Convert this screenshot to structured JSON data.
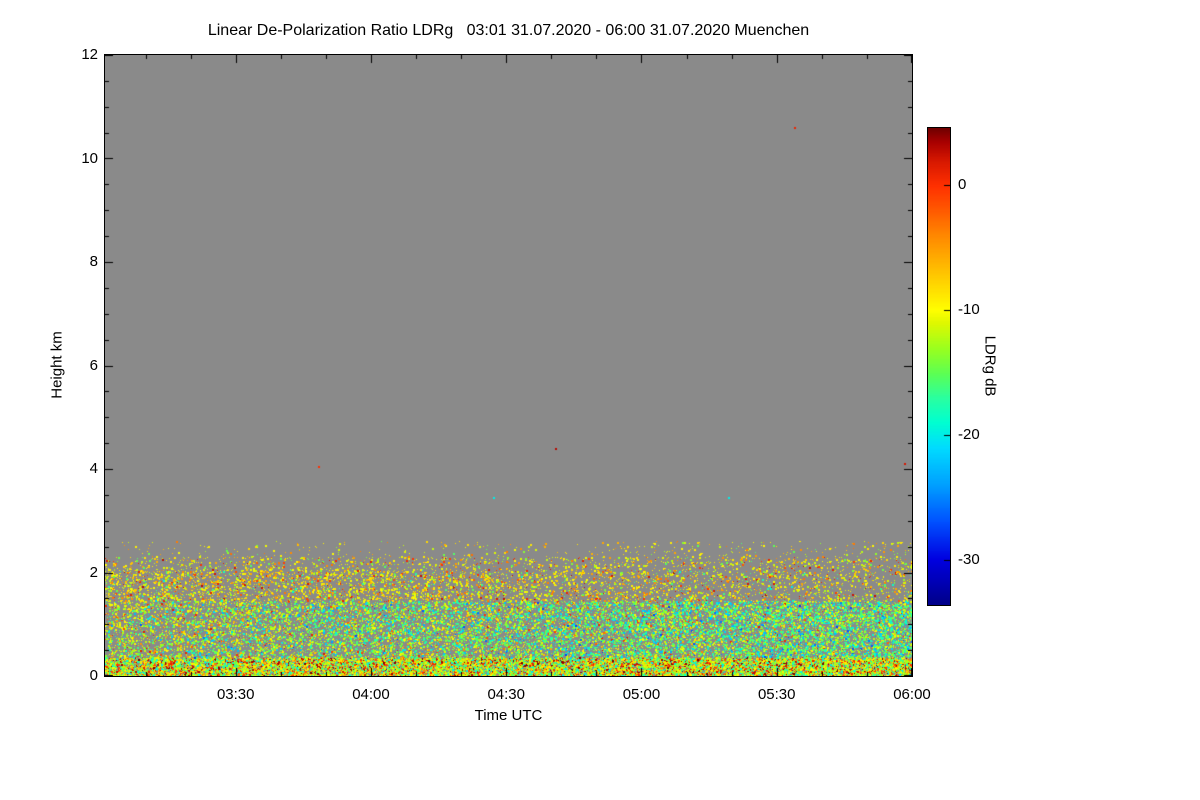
{
  "chart_data": {
    "type": "heatmap",
    "title": "Linear De-Polarization Ratio LDRg   03:01 31.07.2020 - 06:00 31.07.2020 Muenchen",
    "xlabel": "Time UTC",
    "ylabel": "Height km",
    "x_axis": {
      "start_min": 181,
      "end_min": 360,
      "minor_step_min": 10,
      "major": [
        {
          "min": 210,
          "label": "03:30"
        },
        {
          "min": 240,
          "label": "04:00"
        },
        {
          "min": 270,
          "label": "04:30"
        },
        {
          "min": 300,
          "label": "05:00"
        },
        {
          "min": 330,
          "label": "05:30"
        },
        {
          "min": 360,
          "label": "06:00"
        }
      ]
    },
    "y_axis": {
      "min": 0,
      "max": 12,
      "minor_step": 0.5,
      "major": [
        0,
        2,
        4,
        6,
        8,
        10,
        12
      ]
    },
    "no_signal_color": "#8a8a8a",
    "colorbar": {
      "label": "LDRg dB",
      "ticks": [
        0,
        -10,
        -20,
        -30
      ],
      "range": [
        -33.6,
        4.6
      ],
      "stops": [
        [
          -34,
          "#000080"
        ],
        [
          -30,
          "#0000e0"
        ],
        [
          -27,
          "#0050ff"
        ],
        [
          -24,
          "#00a0ff"
        ],
        [
          -21,
          "#00dcff"
        ],
        [
          -19,
          "#00ffd0"
        ],
        [
          -17,
          "#2bff9e"
        ],
        [
          -15,
          "#5fff50"
        ],
        [
          -13,
          "#9cff1e"
        ],
        [
          -11,
          "#e0f800"
        ],
        [
          -10,
          "#ffff00"
        ],
        [
          -8,
          "#ffd800"
        ],
        [
          -6,
          "#ffb000"
        ],
        [
          -4,
          "#ff8800"
        ],
        [
          -2,
          "#ff5a00"
        ],
        [
          0,
          "#ff3000"
        ],
        [
          2,
          "#d61800"
        ],
        [
          3.5,
          "#a80000"
        ],
        [
          4.6,
          "#700000"
        ]
      ]
    },
    "speckle": {
      "seed": 1234,
      "points_total": 55000,
      "bands": [
        {
          "name": "surface",
          "h": [
            0.0,
            0.35
          ],
          "weight": 0.36,
          "t_gain": 0.1,
          "values": [
            {
              "w": 0.33,
              "v": [
                -13,
                -8
              ]
            },
            {
              "w": 0.22,
              "v": [
                -17,
                -12
              ]
            },
            {
              "w": 0.14,
              "v": [
                -21,
                -16
              ]
            },
            {
              "w": 0.13,
              "v": [
                -8,
                -3
              ]
            },
            {
              "w": 0.11,
              "v": [
                -2,
                2
              ]
            },
            {
              "w": 0.07,
              "v": [
                2,
                5
              ]
            }
          ]
        },
        {
          "name": "mixed-layer-yellow",
          "h": [
            0.35,
            1.45
          ],
          "weight": 0.2,
          "t_gain": -0.3,
          "values": [
            {
              "w": 0.45,
              "v": [
                -14,
                -9
              ]
            },
            {
              "w": 0.2,
              "v": [
                -9,
                -4
              ]
            },
            {
              "w": 0.15,
              "v": [
                -17,
                -13
              ]
            },
            {
              "w": 0.12,
              "v": [
                -23,
                -17
              ]
            },
            {
              "w": 0.08,
              "v": [
                -3,
                2
              ]
            }
          ]
        },
        {
          "name": "mixed-layer-green-cyan",
          "h": [
            0.35,
            1.45
          ],
          "weight": 0.29,
          "t_gain": 0.85,
          "values": [
            {
              "w": 0.4,
              "v": [
                -18,
                -13
              ]
            },
            {
              "w": 0.35,
              "v": [
                -23,
                -16
              ]
            },
            {
              "w": 0.2,
              "v": [
                -13,
                -9
              ]
            },
            {
              "w": 0.05,
              "v": [
                -28,
                -22
              ]
            }
          ]
        },
        {
          "name": "top-band",
          "h": [
            1.45,
            2.05
          ],
          "weight": 0.11,
          "t_gain": -0.35,
          "values": [
            {
              "w": 0.5,
              "v": [
                -12,
                -8
              ]
            },
            {
              "w": 0.25,
              "v": [
                -8,
                -3
              ]
            },
            {
              "w": 0.1,
              "v": [
                -2,
                3
              ]
            },
            {
              "w": 0.1,
              "v": [
                -16,
                -12
              ]
            },
            {
              "w": 0.05,
              "v": [
                -20,
                -16
              ]
            }
          ]
        },
        {
          "name": "upper-sparse",
          "h": [
            2.05,
            2.3
          ],
          "weight": 0.02,
          "t_gain": 0.0,
          "values": [
            {
              "w": 0.5,
              "v": [
                -12,
                -8
              ]
            },
            {
              "w": 0.25,
              "v": [
                -8,
                -3
              ]
            },
            {
              "w": 0.1,
              "v": [
                -2,
                3
              ]
            },
            {
              "w": 0.15,
              "v": [
                -16,
                -12
              ]
            }
          ]
        },
        {
          "name": "fringe",
          "h": [
            2.3,
            2.6
          ],
          "weight": 0.008,
          "t_gain": 0.3,
          "values": [
            {
              "w": 0.55,
              "v": [
                -12,
                -8
              ]
            },
            {
              "w": 0.3,
              "v": [
                -8,
                -3
              ]
            },
            {
              "w": 0.15,
              "v": [
                -16,
                -12
              ]
            }
          ]
        }
      ]
    },
    "outliers": [
      {
        "t": 0.855,
        "h": 10.6,
        "v": 1
      },
      {
        "t": 0.558,
        "h": 4.4,
        "v": 3
      },
      {
        "t": 0.991,
        "h": 4.1,
        "v": 2
      },
      {
        "t": 0.264,
        "h": 4.05,
        "v": 0
      },
      {
        "t": 0.482,
        "h": 3.45,
        "v": -20
      },
      {
        "t": 0.773,
        "h": 3.45,
        "v": -20
      }
    ]
  }
}
